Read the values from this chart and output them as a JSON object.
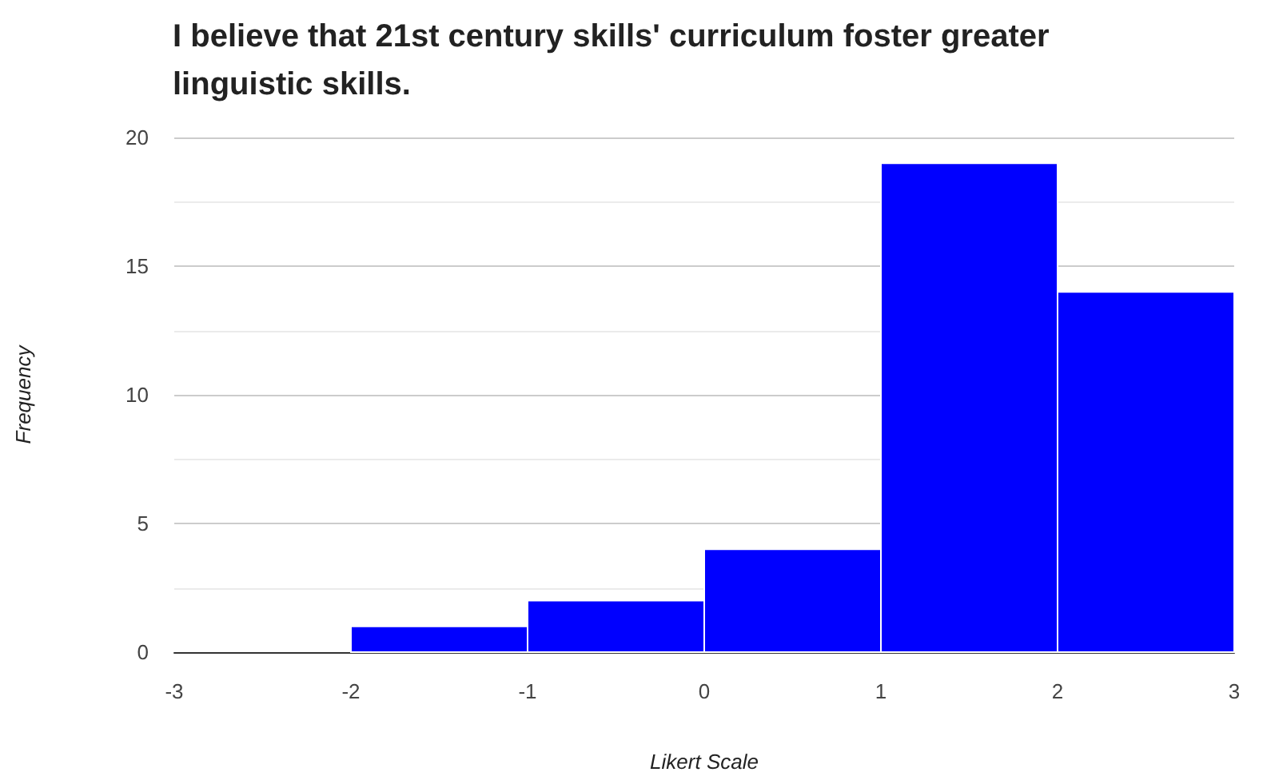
{
  "chart_data": {
    "type": "histogram",
    "title": "I believe that 21st century skills' curriculum foster greater linguistic skills.",
    "xlabel": "Likert Scale",
    "ylabel": "Frequency",
    "bins": [
      -3,
      -2,
      -1,
      0,
      1,
      2,
      3
    ],
    "values": [
      0,
      1,
      2,
      4,
      19,
      14
    ],
    "color": "#0000ff",
    "xlim": [
      -3,
      3
    ],
    "xticks": [
      -3,
      -2,
      -1,
      0,
      1,
      2,
      3
    ],
    "ylim": [
      0,
      20
    ],
    "yticks": [
      0,
      5,
      10,
      15,
      20
    ],
    "grid": "y"
  }
}
